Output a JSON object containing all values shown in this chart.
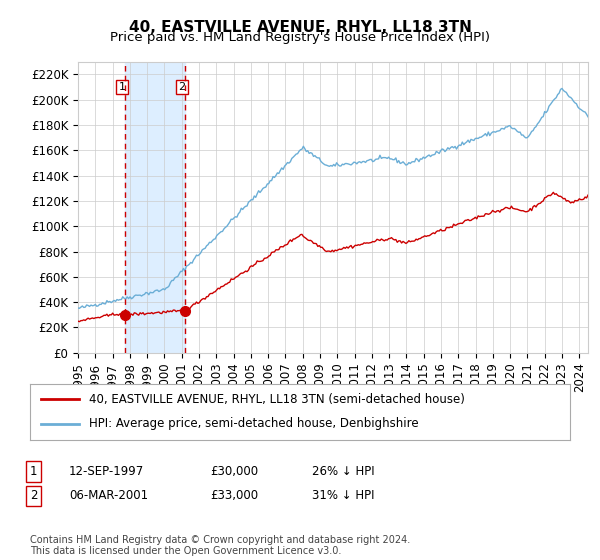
{
  "title": "40, EASTVILLE AVENUE, RHYL, LL18 3TN",
  "subtitle": "Price paid vs. HM Land Registry's House Price Index (HPI)",
  "ylabel_ticks": [
    "£0",
    "£20K",
    "£40K",
    "£60K",
    "£80K",
    "£100K",
    "£120K",
    "£140K",
    "£160K",
    "£180K",
    "£200K",
    "£220K"
  ],
  "ytick_values": [
    0,
    20000,
    40000,
    60000,
    80000,
    100000,
    120000,
    140000,
    160000,
    180000,
    200000,
    220000
  ],
  "ylim": [
    0,
    230000
  ],
  "xlim_start": 1995.0,
  "xlim_end": 2024.5,
  "purchase1_date": 1997.7,
  "purchase1_price": 30000,
  "purchase1_label": "1",
  "purchase2_date": 2001.17,
  "purchase2_price": 33000,
  "purchase2_label": "2",
  "hpi_color": "#6baed6",
  "price_color": "#cc0000",
  "grid_color": "#cccccc",
  "background_color": "#ffffff",
  "shade_color": "#ddeeff",
  "legend_line1": "40, EASTVILLE AVENUE, RHYL, LL18 3TN (semi-detached house)",
  "legend_line2": "HPI: Average price, semi-detached house, Denbighshire",
  "table_row1": [
    "1",
    "12-SEP-1997",
    "£30,000",
    "26% ↓ HPI"
  ],
  "table_row2": [
    "2",
    "06-MAR-2001",
    "£33,000",
    "31% ↓ HPI"
  ],
  "footnote": "Contains HM Land Registry data © Crown copyright and database right 2024.\nThis data is licensed under the Open Government Licence v3.0.",
  "title_fontsize": 11,
  "subtitle_fontsize": 9.5,
  "tick_fontsize": 8.5,
  "legend_fontsize": 8.5,
  "table_fontsize": 8.5,
  "footnote_fontsize": 7
}
